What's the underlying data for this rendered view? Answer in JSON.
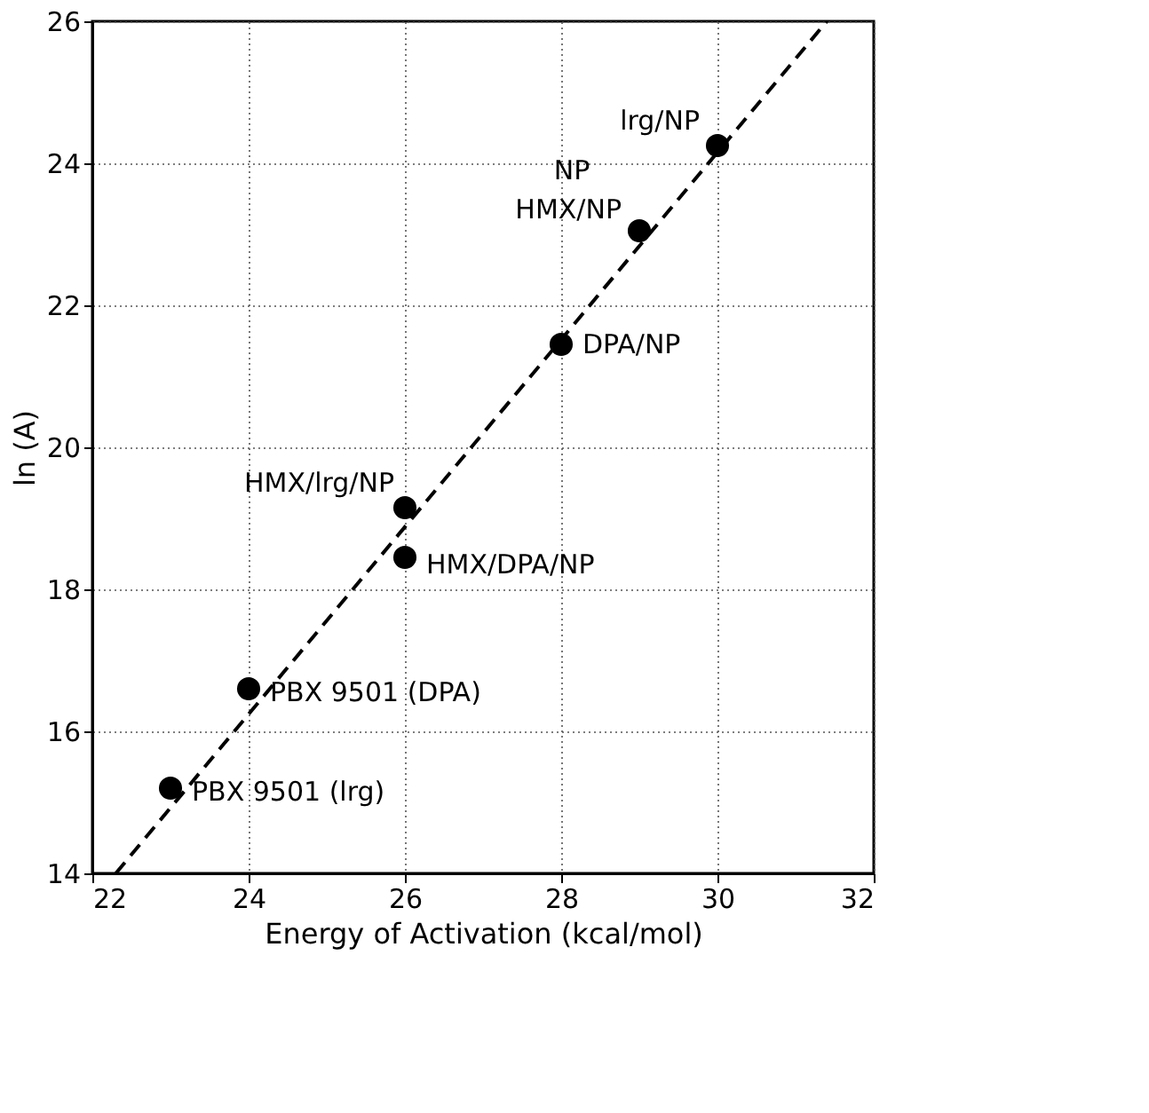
{
  "chart_data": {
    "type": "scatter",
    "xlabel": "Energy of Activation (kcal/mol)",
    "ylabel": "ln (A)",
    "xlim": [
      22,
      32
    ],
    "xticks": [
      22,
      24,
      26,
      28,
      30,
      32
    ],
    "ylim": [
      14,
      26
    ],
    "yticks": [
      14,
      16,
      18,
      20,
      22,
      24,
      26
    ],
    "grid": true,
    "series": [
      {
        "color": "#000000",
        "marker": "circle",
        "x": [
          23,
          24,
          26,
          26,
          28,
          29,
          30
        ],
        "values": [
          15.2,
          16.6,
          18.45,
          19.15,
          21.45,
          23.05,
          24.25
        ]
      },
      {
        "type": "line",
        "color": "#000000",
        "line_style": "dashed",
        "marker": "none",
        "x": [
          22.3,
          31.4
        ],
        "values": [
          14,
          26
        ]
      }
    ],
    "annotations": [
      {
        "text": "lrg/NP",
        "x": 30,
        "y": 24.25
      },
      {
        "text": "NP",
        "x": 29,
        "y": 23.05
      },
      {
        "text": "HMX/NP",
        "x": 29,
        "y": 23.05
      },
      {
        "text": "DPA/NP",
        "x": 28,
        "y": 21.45
      },
      {
        "text": "HMX/lrg/NP",
        "x": 26,
        "y": 19.15
      },
      {
        "text": "HMX/DPA/NP",
        "x": 26,
        "y": 18.45
      },
      {
        "text": "PBX 9501 (DPA)",
        "x": 24,
        "y": 16.6
      },
      {
        "text": "PBX 9501 (lrg)",
        "x": 23,
        "y": 15.2
      }
    ]
  }
}
